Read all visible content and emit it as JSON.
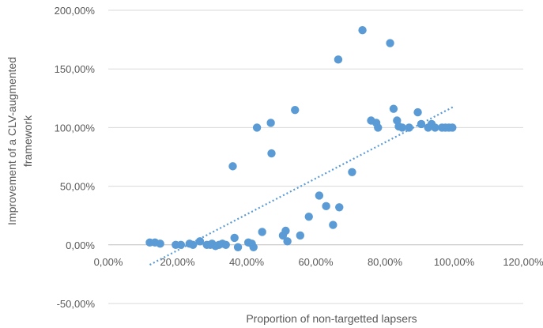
{
  "chart_data": {
    "type": "scatter",
    "title": "",
    "xlabel": "Proportion of non-targetted lapsers",
    "ylabel_lines": [
      "Improvement of a CLV-augmented",
      "framework"
    ],
    "xlim": [
      0,
      120
    ],
    "ylim": [
      -50,
      200
    ],
    "x_ticks": [
      0,
      20,
      40,
      60,
      80,
      100,
      120
    ],
    "y_ticks": [
      -50,
      0,
      50,
      100,
      150,
      200
    ],
    "x_tick_labels": [
      "0,00%",
      "20,00%",
      "40,00%",
      "60,00%",
      "80,00%",
      "100,00%",
      "120,00%"
    ],
    "y_tick_labels": [
      "-50,00%",
      "0,00%",
      "50,00%",
      "100,00%",
      "150,00%",
      "200,00%"
    ],
    "grid": "horizontal",
    "colors": {
      "points": "#5b9bd5",
      "trendline": "#5b9bd5",
      "grid": "#d9d9d9",
      "text": "#595959"
    },
    "series": [
      {
        "points": [
          [
            12,
            2
          ],
          [
            13.5,
            2
          ],
          [
            15,
            1
          ],
          [
            19.5,
            0
          ],
          [
            21,
            0
          ],
          [
            23.5,
            1
          ],
          [
            24.5,
            0
          ],
          [
            26.5,
            3
          ],
          [
            28.5,
            0
          ],
          [
            29.5,
            0
          ],
          [
            30,
            1
          ],
          [
            31,
            -1
          ],
          [
            32,
            0
          ],
          [
            33,
            1
          ],
          [
            34,
            0
          ],
          [
            36,
            67
          ],
          [
            36.5,
            6
          ],
          [
            37.5,
            -2
          ],
          [
            40.5,
            2
          ],
          [
            41.5,
            1
          ],
          [
            42,
            -2
          ],
          [
            43,
            100
          ],
          [
            44.5,
            11
          ],
          [
            47,
            104
          ],
          [
            47.2,
            78
          ],
          [
            50.5,
            8
          ],
          [
            51.3,
            12
          ],
          [
            51.8,
            3
          ],
          [
            54,
            115
          ],
          [
            55.5,
            8
          ],
          [
            58,
            24
          ],
          [
            61,
            42
          ],
          [
            63,
            33
          ],
          [
            65,
            17
          ],
          [
            66.5,
            158
          ],
          [
            66.8,
            32
          ],
          [
            70.5,
            62
          ],
          [
            73.5,
            183
          ],
          [
            76,
            106
          ],
          [
            77.5,
            104
          ],
          [
            78,
            100
          ],
          [
            81.5,
            172
          ],
          [
            82.5,
            116
          ],
          [
            83.5,
            106
          ],
          [
            84,
            101
          ],
          [
            85,
            100
          ],
          [
            87,
            100
          ],
          [
            89.5,
            113
          ],
          [
            90.5,
            103
          ],
          [
            92.5,
            100
          ],
          [
            93.5,
            103
          ],
          [
            94.5,
            100
          ],
          [
            96.5,
            100
          ],
          [
            97.5,
            100
          ],
          [
            98.5,
            100
          ],
          [
            99.5,
            100
          ]
        ]
      }
    ],
    "trendline": {
      "type": "linear",
      "from": [
        12,
        -17
      ],
      "to": [
        100,
        118
      ]
    }
  }
}
